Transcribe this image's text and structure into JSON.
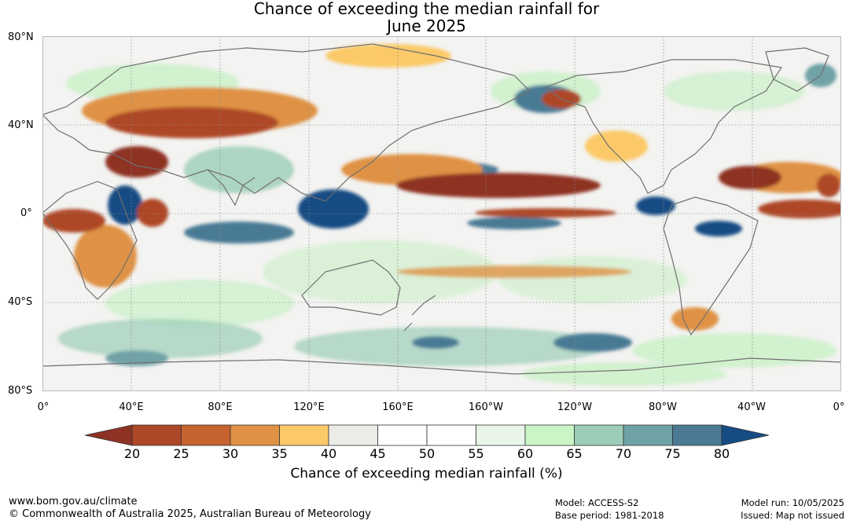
{
  "title": {
    "line1": "Chance of exceeding the median rainfall for",
    "line2": "June 2025"
  },
  "lat_labels": [
    "80°N",
    "40°N",
    "0°",
    "40°S",
    "80°S"
  ],
  "lon_labels": [
    "0°",
    "40°E",
    "80°E",
    "120°E",
    "160°E",
    "160°W",
    "120°W",
    "80°W",
    "40°W",
    "0°"
  ],
  "colorbar": {
    "ticks": [
      "20",
      "25",
      "30",
      "35",
      "40",
      "45",
      "50",
      "55",
      "60",
      "65",
      "70",
      "75",
      "80"
    ],
    "label": "Chance of exceeding median rainfall (%)",
    "low_color": "#8e3324",
    "colors": [
      "#ae4728",
      "#c76331",
      "#df9244",
      "#fbc968",
      "#ebebe7",
      "#ffffff",
      "#ffffff",
      "#e9f5e8",
      "#c9f5c7",
      "#9bcdb8",
      "#6fa2a6",
      "#4a7a94"
    ],
    "high_color": "#154c83"
  },
  "footer": {
    "url": "www.bom.gov.au/climate",
    "copyright": "© Commonwealth of Australia 2025, Australian Bureau of Meteorology",
    "model": "Model: ACCESS-S2",
    "base_period": "Base period: 1981-2018",
    "model_run": "Model run: 10/05/2025",
    "issued": "Issued: Map not issued"
  }
}
